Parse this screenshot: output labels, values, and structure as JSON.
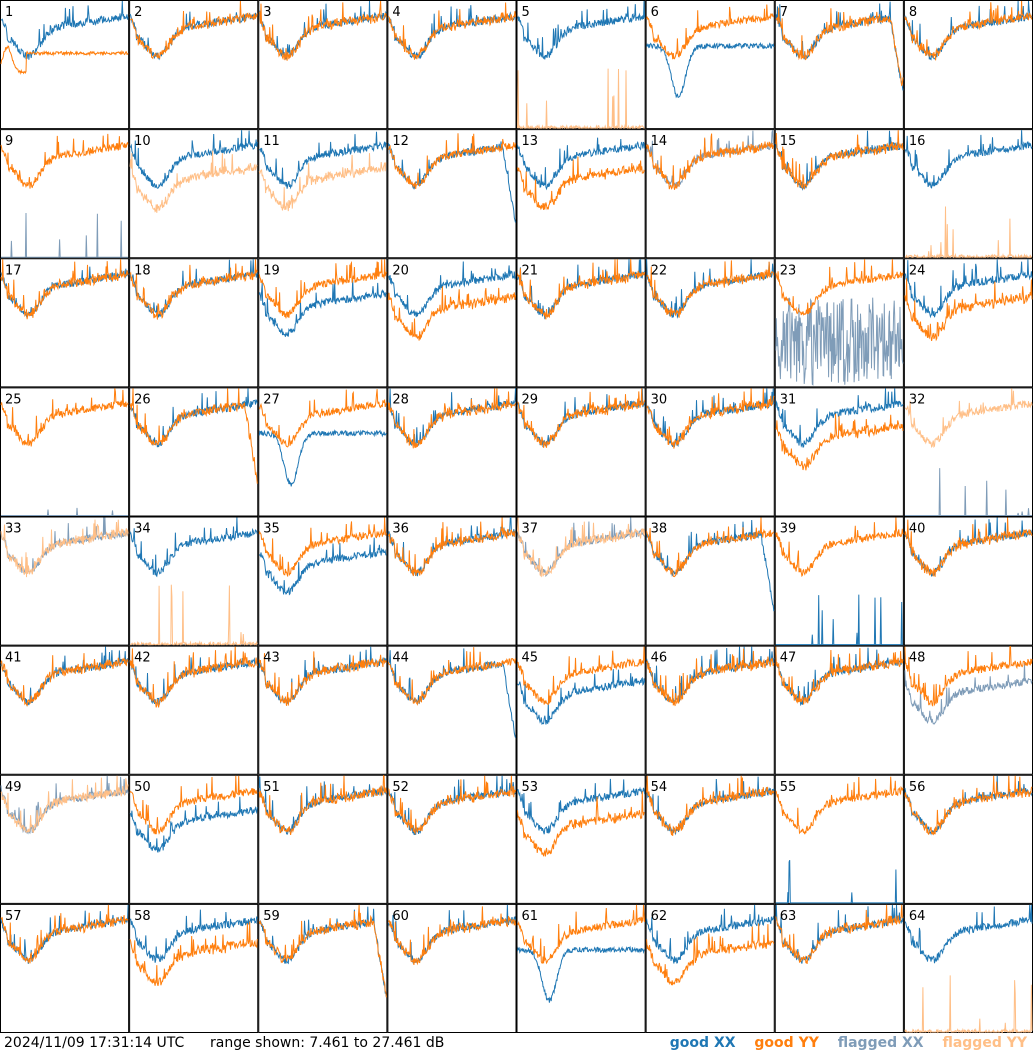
{
  "footer": {
    "timestamp": "2024/11/09 17:31:14 UTC",
    "range": "range shown: 7.461 to 27.461 dB"
  },
  "colors": {
    "good_xx": "#1f77b4",
    "good_yy": "#ff7f0e",
    "flagged_xx": "#7f9cb8",
    "flagged_yy": "#ffbf87"
  },
  "chart_data": {
    "type": "line",
    "layout": "8x8 small multiples, one panel per antenna",
    "x_label": "",
    "y_label": "",
    "ylim": [
      7.461,
      27.461
    ],
    "y_unit": "dB",
    "legend": [
      {
        "label": "good",
        "pol": "XX",
        "status": "good"
      },
      {
        "label": "good",
        "pol": "YY",
        "status": "good"
      },
      {
        "label": "flagged",
        "pol": "XX",
        "status": "flagged"
      },
      {
        "label": "flagged",
        "pol": "YY",
        "status": "flagged"
      }
    ],
    "panels": [
      {
        "id": "1",
        "xx": "good",
        "yy": "good",
        "shape": "xx_high_yy_dip"
      },
      {
        "id": "2",
        "xx": "good",
        "yy": "good",
        "shape": "normal"
      },
      {
        "id": "3",
        "xx": "good",
        "yy": "good",
        "shape": "normal"
      },
      {
        "id": "4",
        "xx": "good",
        "yy": "good",
        "shape": "normal"
      },
      {
        "id": "5",
        "xx": "good",
        "yy": "flagged",
        "shape": "yy_zero"
      },
      {
        "id": "6",
        "xx": "good",
        "yy": "good",
        "shape": "xx_deep_dip"
      },
      {
        "id": "7",
        "xx": "good",
        "yy": "good",
        "shape": "normal_dropend"
      },
      {
        "id": "8",
        "xx": "good",
        "yy": "good",
        "shape": "normal"
      },
      {
        "id": "9",
        "xx": "flagged",
        "yy": "good",
        "shape": "xx_zero"
      },
      {
        "id": "10",
        "xx": "good",
        "yy": "flagged",
        "shape": "yy_low"
      },
      {
        "id": "11",
        "xx": "good",
        "yy": "flagged",
        "shape": "yy_low"
      },
      {
        "id": "12",
        "xx": "good",
        "yy": "good",
        "shape": "xx_dropend"
      },
      {
        "id": "13",
        "xx": "good",
        "yy": "good",
        "shape": "yy_low"
      },
      {
        "id": "14",
        "xx": "flagged",
        "yy": "good",
        "shape": "normal"
      },
      {
        "id": "15",
        "xx": "good",
        "yy": "good",
        "shape": "normal"
      },
      {
        "id": "16",
        "xx": "good",
        "yy": "flagged",
        "shape": "yy_zero"
      },
      {
        "id": "17",
        "xx": "good",
        "yy": "good",
        "shape": "normal"
      },
      {
        "id": "18",
        "xx": "good",
        "yy": "good",
        "shape": "normal"
      },
      {
        "id": "19",
        "xx": "good",
        "yy": "good",
        "shape": "xx_low"
      },
      {
        "id": "20",
        "xx": "good",
        "yy": "good",
        "shape": "yy_low"
      },
      {
        "id": "21",
        "xx": "good",
        "yy": "good",
        "shape": "normal"
      },
      {
        "id": "22",
        "xx": "good",
        "yy": "good",
        "shape": "normal"
      },
      {
        "id": "23",
        "xx": "flagged",
        "yy": "good",
        "shape": "xx_noisy"
      },
      {
        "id": "24",
        "xx": "good",
        "yy": "good",
        "shape": "yy_low"
      },
      {
        "id": "25",
        "xx": "flagged",
        "yy": "good",
        "shape": "xx_zero"
      },
      {
        "id": "26",
        "xx": "good",
        "yy": "good",
        "shape": "yy_dropend"
      },
      {
        "id": "27",
        "xx": "good",
        "yy": "good",
        "shape": "xx_deep_dip"
      },
      {
        "id": "28",
        "xx": "good",
        "yy": "good",
        "shape": "normal"
      },
      {
        "id": "29",
        "xx": "good",
        "yy": "good",
        "shape": "normal"
      },
      {
        "id": "30",
        "xx": "good",
        "yy": "good",
        "shape": "normal"
      },
      {
        "id": "31",
        "xx": "good",
        "yy": "good",
        "shape": "yy_low"
      },
      {
        "id": "32",
        "xx": "flagged",
        "yy": "flagged",
        "shape": "xx_zero"
      },
      {
        "id": "33",
        "xx": "flagged",
        "yy": "flagged",
        "shape": "normal"
      },
      {
        "id": "34",
        "xx": "good",
        "yy": "flagged",
        "shape": "yy_zero"
      },
      {
        "id": "35",
        "xx": "good",
        "yy": "good",
        "shape": "xx_low"
      },
      {
        "id": "36",
        "xx": "good",
        "yy": "good",
        "shape": "normal"
      },
      {
        "id": "37",
        "xx": "flagged",
        "yy": "flagged",
        "shape": "normal"
      },
      {
        "id": "38",
        "xx": "good",
        "yy": "good",
        "shape": "xx_dropend"
      },
      {
        "id": "39",
        "xx": "good",
        "yy": "good",
        "shape": "xx_zero"
      },
      {
        "id": "40",
        "xx": "good",
        "yy": "good",
        "shape": "normal"
      },
      {
        "id": "41",
        "xx": "good",
        "yy": "good",
        "shape": "normal"
      },
      {
        "id": "42",
        "xx": "good",
        "yy": "good",
        "shape": "normal"
      },
      {
        "id": "43",
        "xx": "good",
        "yy": "good",
        "shape": "normal"
      },
      {
        "id": "44",
        "xx": "good",
        "yy": "good",
        "shape": "xx_dropend"
      },
      {
        "id": "45",
        "xx": "good",
        "yy": "good",
        "shape": "xx_low"
      },
      {
        "id": "46",
        "xx": "good",
        "yy": "good",
        "shape": "normal"
      },
      {
        "id": "47",
        "xx": "good",
        "yy": "good",
        "shape": "normal"
      },
      {
        "id": "48",
        "xx": "flagged",
        "yy": "good",
        "shape": "xx_low"
      },
      {
        "id": "49",
        "xx": "flagged",
        "yy": "flagged",
        "shape": "normal"
      },
      {
        "id": "50",
        "xx": "good",
        "yy": "good",
        "shape": "xx_low"
      },
      {
        "id": "51",
        "xx": "good",
        "yy": "good",
        "shape": "normal"
      },
      {
        "id": "52",
        "xx": "good",
        "yy": "good",
        "shape": "normal"
      },
      {
        "id": "53",
        "xx": "good",
        "yy": "good",
        "shape": "yy_low"
      },
      {
        "id": "54",
        "xx": "good",
        "yy": "good",
        "shape": "normal"
      },
      {
        "id": "55",
        "xx": "good",
        "yy": "good",
        "shape": "xx_zero"
      },
      {
        "id": "56",
        "xx": "good",
        "yy": "good",
        "shape": "normal"
      },
      {
        "id": "57",
        "xx": "good",
        "yy": "good",
        "shape": "normal"
      },
      {
        "id": "58",
        "xx": "good",
        "yy": "good",
        "shape": "yy_low"
      },
      {
        "id": "59",
        "xx": "good",
        "yy": "good",
        "shape": "normal_dropend"
      },
      {
        "id": "60",
        "xx": "good",
        "yy": "good",
        "shape": "normal"
      },
      {
        "id": "61",
        "xx": "good",
        "yy": "good",
        "shape": "xx_deep_dip"
      },
      {
        "id": "62",
        "xx": "good",
        "yy": "good",
        "shape": "yy_low"
      },
      {
        "id": "63",
        "xx": "good",
        "yy": "good",
        "shape": "normal"
      },
      {
        "id": "64",
        "xx": "good",
        "yy": "flagged",
        "shape": "yy_zero"
      }
    ]
  }
}
